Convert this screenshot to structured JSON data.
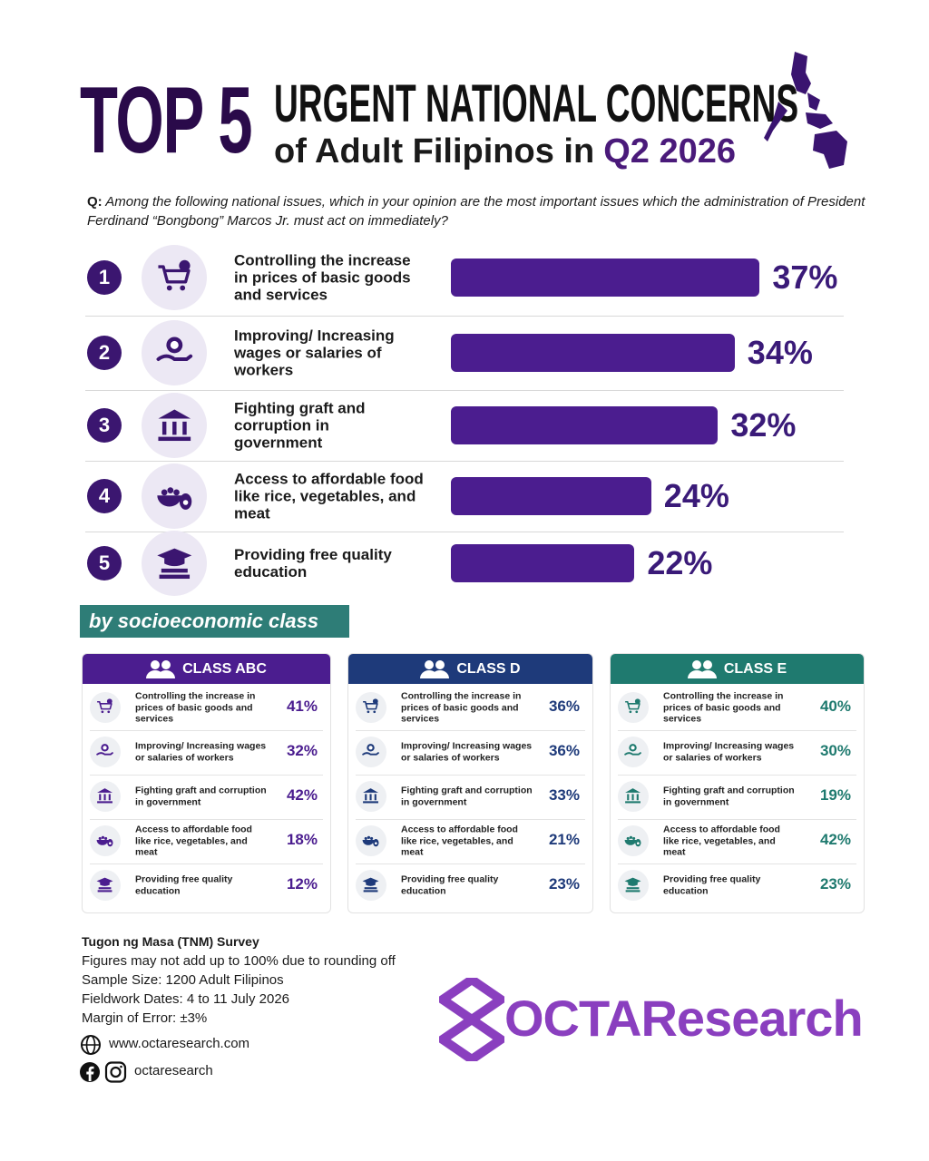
{
  "header": {
    "top": "TOP 5",
    "title": "URGENT NATIONAL CONCERNS",
    "subtitle": "of Adult Filipinos in",
    "period": "Q2 2026"
  },
  "question": {
    "prefix": "Q:",
    "text": "Among the following national issues, which in your opinion are the most important issues which the administration of President Ferdinand “Bongbong” Marcos Jr. must act on immediately?"
  },
  "chart_data": {
    "type": "bar",
    "orientation": "horizontal",
    "color": "#4b1d8f",
    "ranks": [
      1,
      2,
      3,
      4,
      5
    ],
    "categories": [
      "Controlling the increase in prices of basic goods and services",
      "Improving/ Increasing wages or salaries of workers",
      "Fighting graft and corruption in government",
      "Access to affordable food like rice, vegetables, and meat",
      "Providing free quality education"
    ],
    "values": [
      37,
      34,
      32,
      24,
      22
    ],
    "value_labels": [
      "37%",
      "34%",
      "32%",
      "24%",
      "22%"
    ]
  },
  "section_label": "by socioeconomic class",
  "classes": [
    {
      "name": "CLASS ABC",
      "color": "#4b1d8f",
      "rows": [
        [
          "Controlling the increase in prices of basic goods and services",
          "41%"
        ],
        [
          "Improving/ Increasing wages or salaries of workers",
          "32%"
        ],
        [
          "Fighting graft and corruption in government",
          "42%"
        ],
        [
          "Access to affordable food like rice, vegetables, and meat",
          "18%"
        ],
        [
          "Providing free quality education",
          "12%"
        ]
      ]
    },
    {
      "name": "CLASS D",
      "color": "#1e3a7a",
      "rows": [
        [
          "Controlling the increase in prices of basic goods and services",
          "36%"
        ],
        [
          "Improving/ Increasing wages or salaries of workers",
          "36%"
        ],
        [
          "Fighting graft and corruption in government",
          "33%"
        ],
        [
          "Access to affordable food like rice, vegetables, and meat",
          "21%"
        ],
        [
          "Providing free quality education",
          "23%"
        ]
      ]
    },
    {
      "name": "CLASS E",
      "color": "#1f7a6f",
      "rows": [
        [
          "Controlling the increase in prices of basic goods and services",
          "40%"
        ],
        [
          "Improving/ Increasing wages or salaries of workers",
          "30%"
        ],
        [
          "Fighting graft and corruption in government",
          "19%"
        ],
        [
          "Access to affordable food like rice, vegetables, and meat",
          "42%"
        ],
        [
          "Providing free quality education",
          "23%"
        ]
      ]
    }
  ],
  "footer": {
    "survey": "Tugon ng Masa (TNM) Survey",
    "notes": [
      "Figures may not add up to 100% due to rounding off",
      "Sample Size: 1200 Adult Filipinos",
      "Fieldwork Dates: 4 to 11 July 2026",
      "Margin of Error: ±3%"
    ],
    "website": "www.octaresearch.com",
    "social": "octaresearch",
    "logo": "OCTAResearch"
  }
}
